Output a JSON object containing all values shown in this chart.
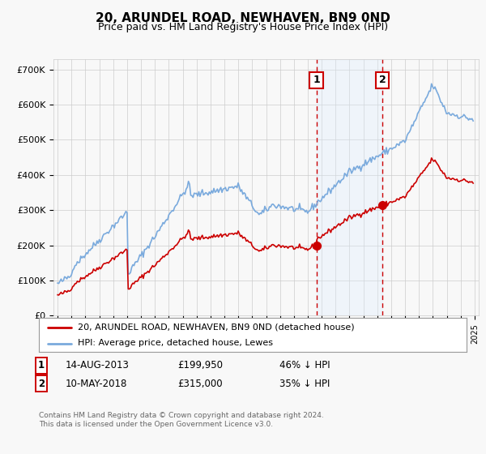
{
  "title": "20, ARUNDEL ROAD, NEWHAVEN, BN9 0ND",
  "subtitle": "Price paid vs. HM Land Registry's House Price Index (HPI)",
  "title_fontsize": 11,
  "subtitle_fontsize": 9,
  "ylabel_ticks": [
    "£0",
    "£100K",
    "£200K",
    "£300K",
    "£400K",
    "£500K",
    "£600K",
    "£700K"
  ],
  "ytick_values": [
    0,
    100000,
    200000,
    300000,
    400000,
    500000,
    600000,
    700000
  ],
  "ylim": [
    0,
    730000
  ],
  "xlim_start": 1994.7,
  "xlim_end": 2025.3,
  "sale1_x": 2013.62,
  "sale1_y": 199950,
  "sale2_x": 2018.37,
  "sale2_y": 315000,
  "sale1_label": "1",
  "sale2_label": "2",
  "legend_line1": "20, ARUNDEL ROAD, NEWHAVEN, BN9 0ND (detached house)",
  "legend_line2": "HPI: Average price, detached house, Lewes",
  "hpi_color": "#7aaadd",
  "price_color": "#cc0000",
  "sale_marker_color": "#cc0000",
  "vline_color": "#cc0000",
  "shade_color": "#ddeeff",
  "background_color": "#f8f8f8",
  "grid_color": "#cccccc",
  "table_rows": [
    [
      "1",
      "14-AUG-2013",
      "£199,950",
      "46% ↓ HPI"
    ],
    [
      "2",
      "10-MAY-2018",
      "£315,000",
      "35% ↓ HPI"
    ]
  ],
  "footnote_line1": "Contains HM Land Registry data © Crown copyright and database right 2024.",
  "footnote_line2": "This data is licensed under the Open Government Licence v3.0."
}
